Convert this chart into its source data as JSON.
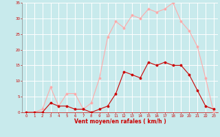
{
  "x": [
    0,
    1,
    2,
    3,
    4,
    5,
    6,
    7,
    8,
    9,
    10,
    11,
    12,
    13,
    14,
    15,
    16,
    17,
    18,
    19,
    20,
    21,
    22,
    23
  ],
  "rafales": [
    0,
    0,
    1,
    8,
    2,
    6,
    6,
    1,
    3,
    11,
    24,
    29,
    27,
    31,
    30,
    33,
    32,
    33,
    35,
    29,
    26,
    21,
    11,
    0
  ],
  "moyen": [
    0,
    0,
    0,
    3,
    2,
    2,
    1,
    1,
    0,
    1,
    2,
    6,
    13,
    12,
    11,
    16,
    15,
    16,
    15,
    15,
    12,
    7,
    2,
    1
  ],
  "bg_color": "#c8eaec",
  "grid_color": "#b0d8db",
  "line_color_rafales": "#ffaaaa",
  "line_color_moyen": "#cc0000",
  "marker_color_rafales": "#ffaaaa",
  "marker_color_moyen": "#cc0000",
  "xlabel": "Vent moyen/en rafales ( km/h )",
  "xlabel_color": "#cc0000",
  "tick_color": "#cc0000",
  "spine_color": "#888888",
  "ylim": [
    0,
    35
  ],
  "yticks": [
    0,
    5,
    10,
    15,
    20,
    25,
    30,
    35
  ],
  "xlim": [
    -0.5,
    23.5
  ],
  "xticks": [
    0,
    1,
    2,
    3,
    4,
    5,
    6,
    7,
    8,
    9,
    10,
    11,
    12,
    13,
    14,
    15,
    16,
    17,
    18,
    19,
    20,
    21,
    22,
    23
  ]
}
